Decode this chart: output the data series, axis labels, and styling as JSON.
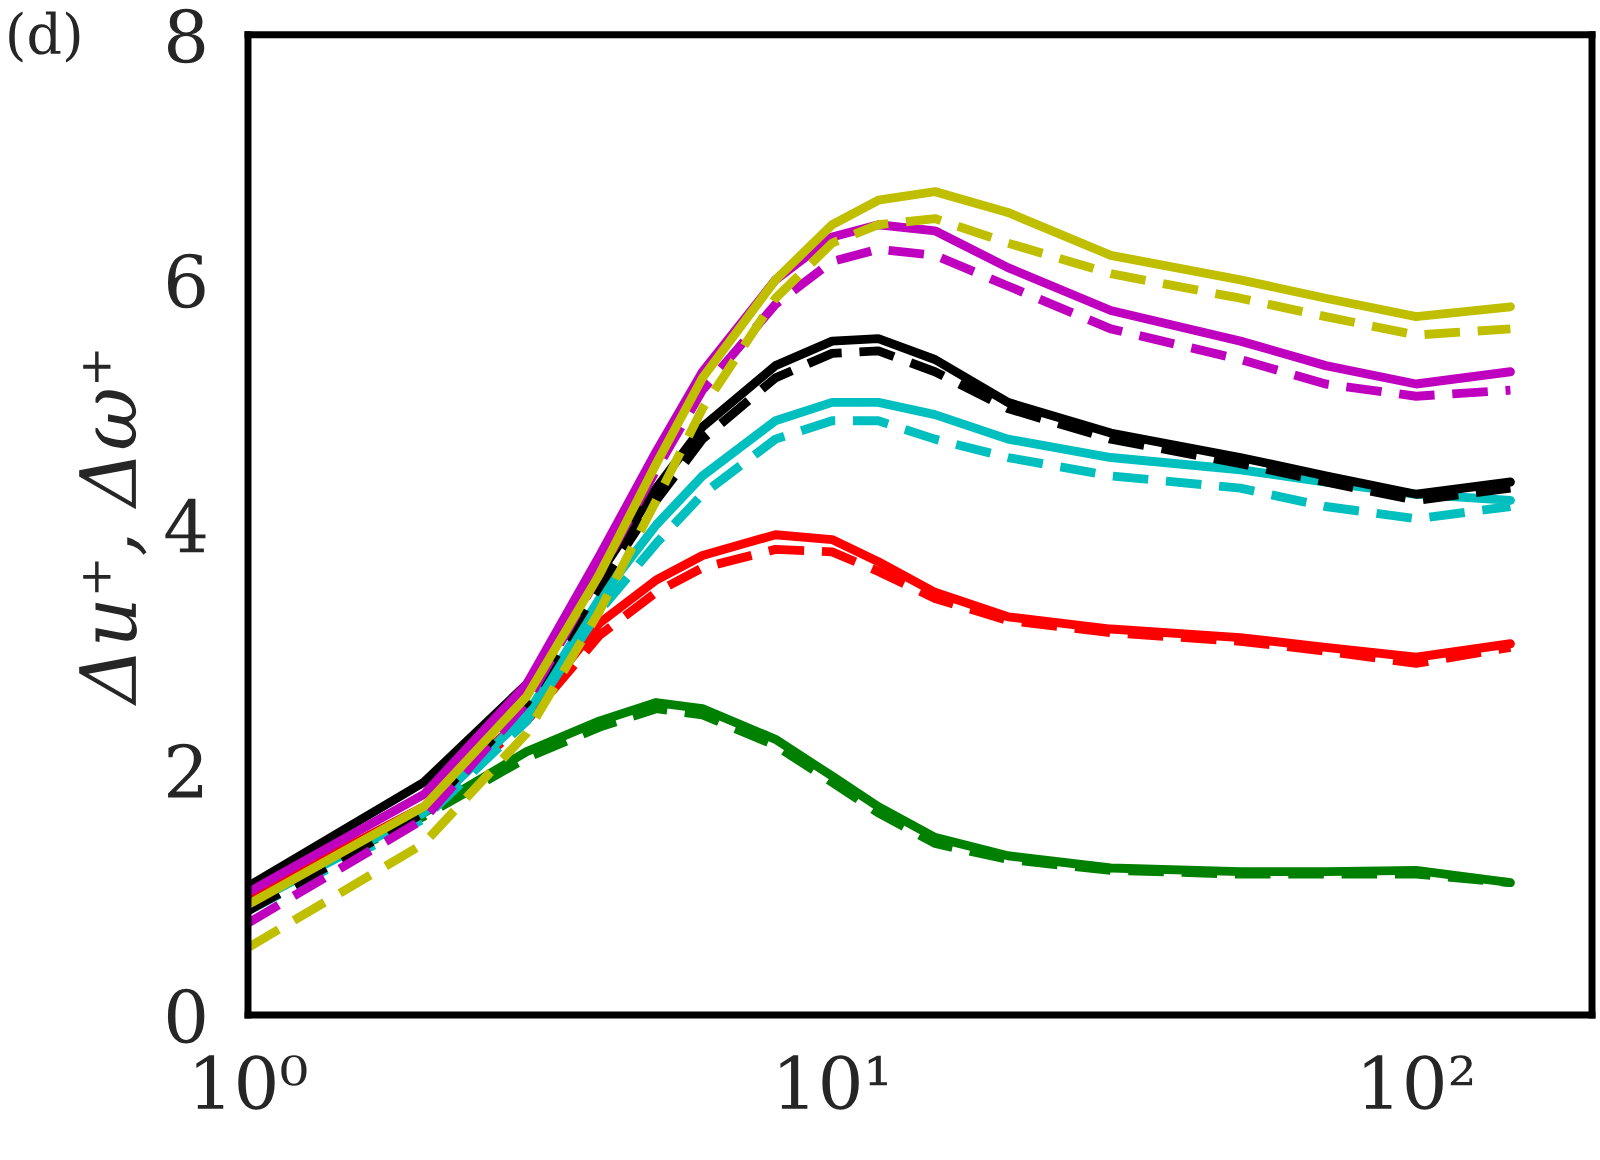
{
  "chart_data": {
    "type": "line",
    "ylabel": "Δu⁺, Δω⁺",
    "annotations": [
      "(d)"
    ],
    "x": [
      1,
      2,
      3,
      4,
      5,
      6,
      8,
      10,
      12,
      15,
      20,
      30,
      50,
      70,
      100,
      145
    ],
    "log": "x",
    "xlim": [
      1,
      200
    ],
    "xticks": [
      {
        "value": 1,
        "label": "10⁰"
      },
      {
        "value": 10,
        "label": "10¹"
      },
      {
        "value": 100,
        "label": "10²"
      }
    ],
    "ylim": [
      0,
      8
    ],
    "yticks": [
      0,
      2,
      4,
      6,
      8
    ],
    "grid": false,
    "legend": false,
    "marker": "none",
    "series": [
      {
        "color": "#008000",
        "line_style": "solid",
        "values": [
          1.0,
          1.65,
          2.15,
          2.4,
          2.55,
          2.5,
          2.25,
          1.95,
          1.7,
          1.45,
          1.3,
          1.2,
          1.17,
          1.17,
          1.18,
          1.08
        ]
      },
      {
        "color": "#008000",
        "line_style": "dashed",
        "values": [
          0.95,
          1.62,
          2.1,
          2.35,
          2.5,
          2.45,
          2.2,
          1.9,
          1.65,
          1.4,
          1.27,
          1.18,
          1.15,
          1.15,
          1.15,
          1.08
        ]
      },
      {
        "color": "#ff0000",
        "line_style": "solid",
        "values": [
          0.95,
          1.7,
          2.45,
          3.2,
          3.55,
          3.75,
          3.92,
          3.88,
          3.7,
          3.45,
          3.25,
          3.15,
          3.08,
          3.0,
          2.92,
          3.03
        ]
      },
      {
        "color": "#ff0000",
        "line_style": "dashed",
        "values": [
          0.9,
          1.68,
          2.4,
          3.1,
          3.45,
          3.65,
          3.8,
          3.78,
          3.62,
          3.4,
          3.22,
          3.12,
          3.05,
          2.97,
          2.87,
          3.0
        ]
      },
      {
        "color": "#00bfbf",
        "line_style": "solid",
        "values": [
          0.9,
          1.65,
          2.45,
          3.4,
          4.0,
          4.4,
          4.85,
          5.0,
          5.0,
          4.9,
          4.7,
          4.55,
          4.45,
          4.35,
          4.25,
          4.2
        ]
      },
      {
        "color": "#00bfbf",
        "line_style": "dashed",
        "values": [
          0.85,
          1.6,
          2.4,
          3.3,
          3.85,
          4.25,
          4.7,
          4.85,
          4.85,
          4.7,
          4.55,
          4.4,
          4.3,
          4.15,
          4.05,
          4.15
        ]
      },
      {
        "color": "#000000",
        "line_style": "solid",
        "values": [
          1.05,
          1.9,
          2.7,
          3.6,
          4.3,
          4.8,
          5.3,
          5.5,
          5.52,
          5.35,
          5.0,
          4.75,
          4.55,
          4.4,
          4.25,
          4.35
        ]
      },
      {
        "color": "#000000",
        "line_style": "dashed",
        "values": [
          0.85,
          1.65,
          2.55,
          3.5,
          4.2,
          4.7,
          5.2,
          5.4,
          5.42,
          5.25,
          4.95,
          4.7,
          4.5,
          4.35,
          4.2,
          4.3
        ]
      },
      {
        "color": "#bf00bf",
        "line_style": "solid",
        "values": [
          1.0,
          1.8,
          2.7,
          3.75,
          4.6,
          5.25,
          6.0,
          6.35,
          6.45,
          6.4,
          6.1,
          5.75,
          5.5,
          5.3,
          5.15,
          5.25
        ]
      },
      {
        "color": "#bf00bf",
        "line_style": "dashed",
        "values": [
          0.75,
          1.6,
          2.55,
          3.6,
          4.45,
          5.1,
          5.8,
          6.15,
          6.25,
          6.2,
          5.95,
          5.6,
          5.35,
          5.15,
          5.05,
          5.1
        ]
      },
      {
        "color": "#bfbf00",
        "line_style": "solid",
        "values": [
          0.9,
          1.7,
          2.6,
          3.6,
          4.5,
          5.2,
          6.0,
          6.45,
          6.65,
          6.72,
          6.55,
          6.2,
          6.0,
          5.85,
          5.7,
          5.78
        ]
      },
      {
        "color": "#bfbf00",
        "line_style": "dashed",
        "values": [
          0.55,
          1.4,
          2.3,
          3.3,
          4.2,
          4.95,
          5.85,
          6.3,
          6.45,
          6.5,
          6.3,
          6.05,
          5.85,
          5.7,
          5.55,
          5.6
        ]
      }
    ]
  }
}
